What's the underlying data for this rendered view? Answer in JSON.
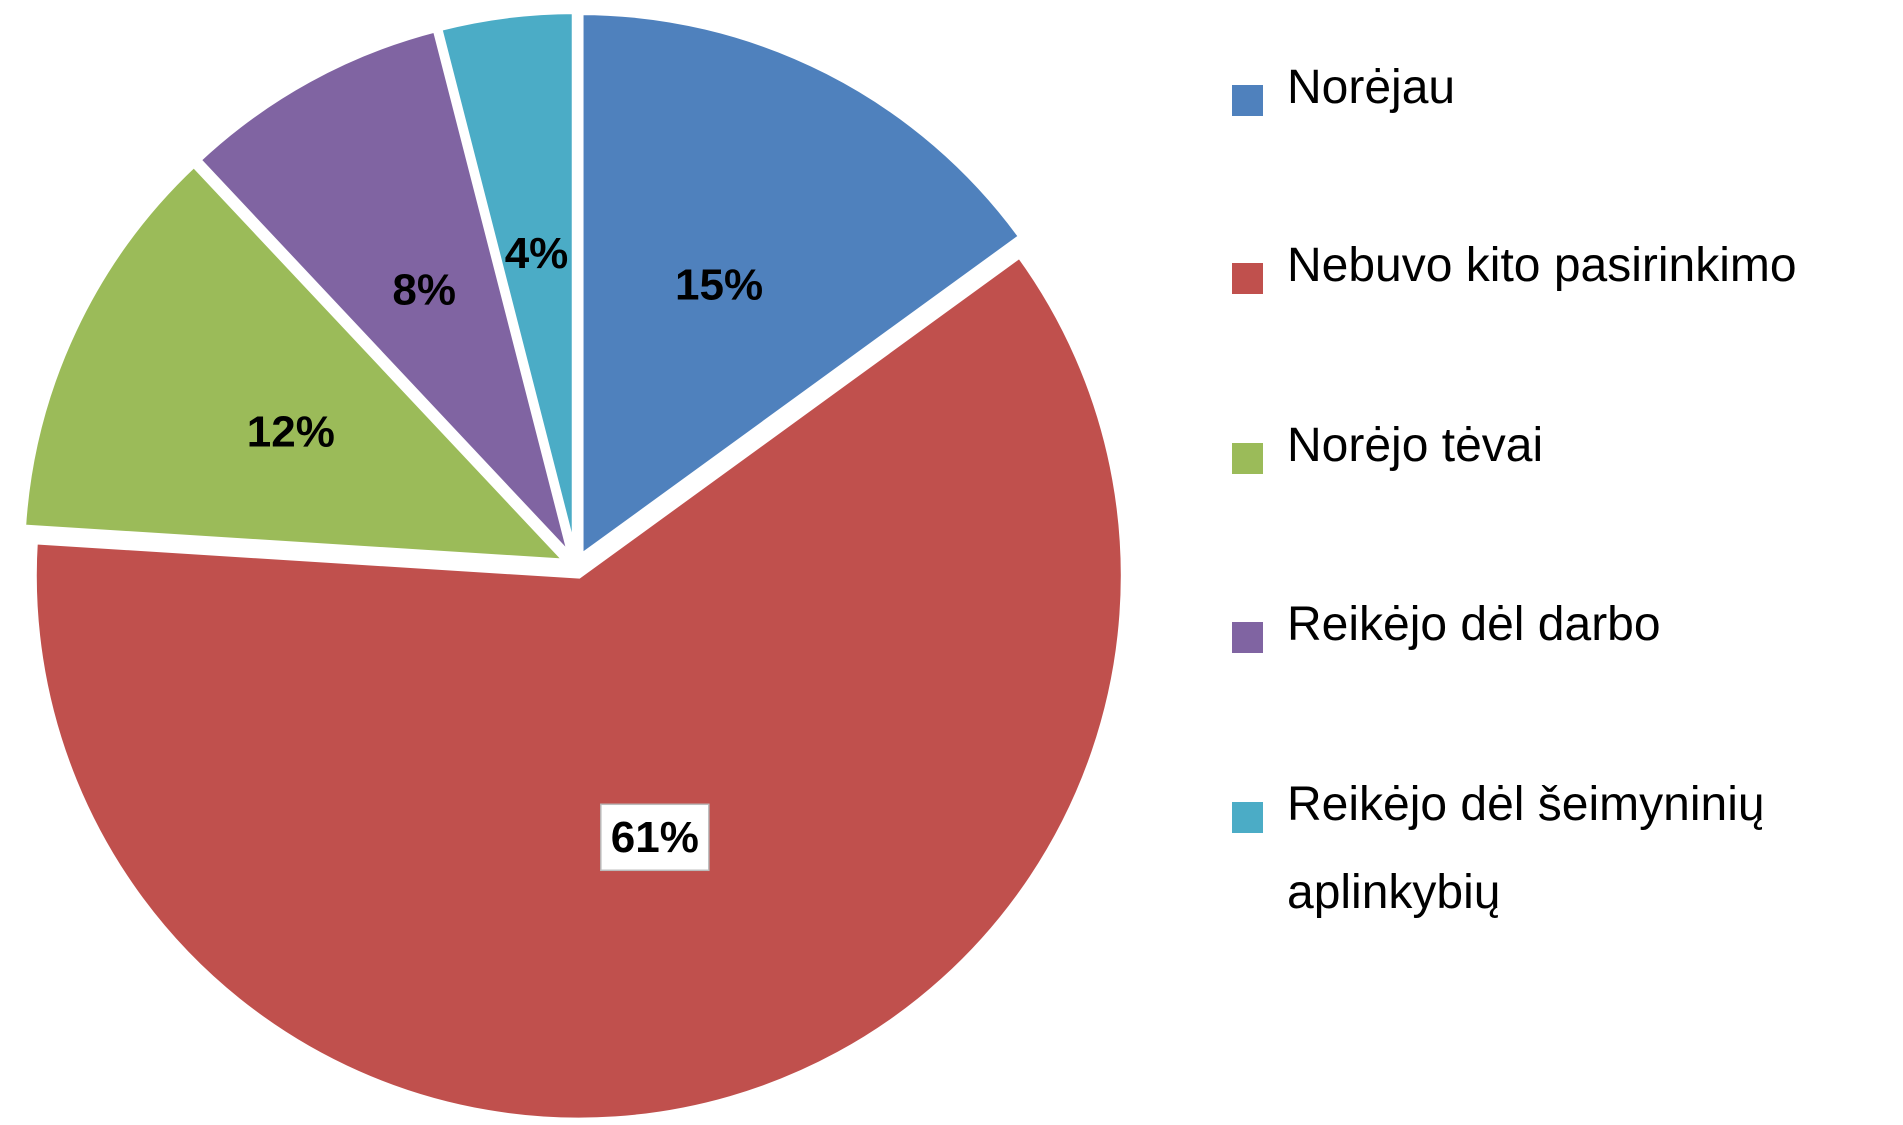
{
  "chart_data": {
    "type": "pie",
    "categories": [
      "Norėjau",
      "Nebuvo kito pasirinkimo",
      "Norėjo tėvai",
      "Reikėjo dėl darbo",
      "Reikėjo dėl šeimyninių aplinkybių"
    ],
    "values": [
      15,
      61,
      12,
      8,
      4
    ],
    "value_labels": [
      "15%",
      "61%",
      "12%",
      "8%",
      "4%"
    ],
    "colors": [
      "#4f81bd",
      "#c0504d",
      "#9bbb59",
      "#8064a2",
      "#4bacc6"
    ],
    "legend": "right"
  }
}
